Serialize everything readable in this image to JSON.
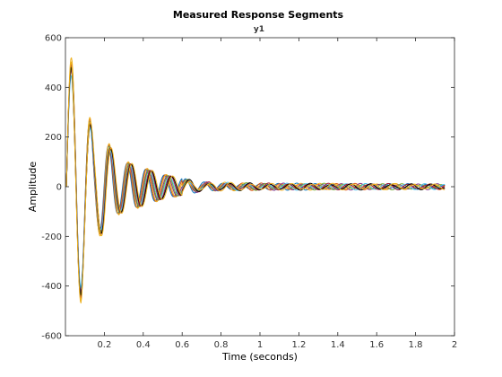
{
  "chart_data": {
    "type": "line",
    "title": "Measured Response Segments",
    "subtitle": "y1",
    "xlabel": "Time (seconds)",
    "ylabel": "Amplitude",
    "xlim": [
      0,
      2
    ],
    "ylim": [
      -600,
      600
    ],
    "xticks": [
      0.2,
      0.4,
      0.6,
      0.8,
      1,
      1.2,
      1.4,
      1.6,
      1.8,
      2
    ],
    "xtick_labels": [
      "0.2",
      "0.4",
      "0.6",
      "0.8",
      "1",
      "1.2",
      "1.4",
      "1.6",
      "1.8",
      "2"
    ],
    "yticks": [
      -600,
      -400,
      -200,
      0,
      200,
      400,
      600
    ],
    "ytick_labels": [
      "-600",
      "-400",
      "-200",
      "0",
      "200",
      "400",
      "600"
    ],
    "grid": false,
    "response": {
      "t_start": 0.005,
      "t_end": 1.95,
      "envelope_points": [
        [
          0.03,
          500
        ],
        [
          0.08,
          -450
        ],
        [
          0.15,
          180
        ],
        [
          0.2,
          -200
        ],
        [
          0.27,
          110
        ],
        [
          0.35,
          -90
        ],
        [
          0.5,
          50
        ],
        [
          0.7,
          20
        ],
        [
          1.0,
          15
        ],
        [
          1.95,
          12
        ]
      ],
      "dominant_period_s": 0.1
    },
    "series": [
      {
        "color": "#0072BD",
        "peak": 480
      },
      {
        "color": "#D95319",
        "peak": 500
      },
      {
        "color": "#EDB120",
        "peak": 520
      },
      {
        "color": "#7E2F8E",
        "peak": 470
      },
      {
        "color": "#77AC30",
        "peak": 490
      },
      {
        "color": "#4DBEEE",
        "peak": 450
      },
      {
        "color": "#A2142F",
        "peak": 495
      },
      {
        "color": "#000000",
        "peak": 485
      },
      {
        "color": "#EDB120",
        "peak": 510
      }
    ]
  }
}
